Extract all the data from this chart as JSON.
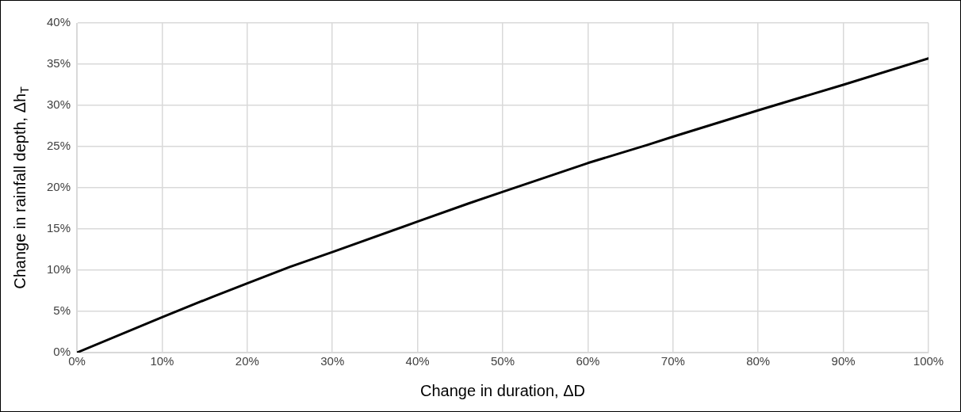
{
  "chart_data": {
    "type": "line",
    "xlabel": "Change in duration, ΔD",
    "ylabel": "Change in rainfall depth, Δh$_{T}$",
    "x": [
      0,
      10,
      16,
      20,
      25,
      30,
      40,
      46,
      50,
      60,
      67,
      70,
      80,
      90,
      100
    ],
    "series": [
      {
        "color": "#000000",
        "values": [
          0,
          4.3,
          6.8,
          8.4,
          10.4,
          12.2,
          15.9,
          18.1,
          19.5,
          23,
          25.2,
          26.2,
          29.4,
          32.5,
          35.7
        ]
      }
    ],
    "xlim": [
      0,
      100
    ],
    "xticks": [
      {
        "value": 0,
        "label": "0%"
      },
      {
        "value": 10,
        "label": "10%"
      },
      {
        "value": 20,
        "label": "20%"
      },
      {
        "value": 30,
        "label": "30%"
      },
      {
        "value": 40,
        "label": "40%"
      },
      {
        "value": 50,
        "label": "50%"
      },
      {
        "value": 60,
        "label": "60%"
      },
      {
        "value": 70,
        "label": "70%"
      },
      {
        "value": 80,
        "label": "80%"
      },
      {
        "value": 90,
        "label": "90%"
      },
      {
        "value": 100,
        "label": "100%"
      }
    ],
    "ylim": [
      0,
      40
    ],
    "yticks": [
      {
        "value": 0,
        "label": "0%"
      },
      {
        "value": 5,
        "label": "5%"
      },
      {
        "value": 10,
        "label": "10%"
      },
      {
        "value": 15,
        "label": "15%"
      },
      {
        "value": 20,
        "label": "20%"
      },
      {
        "value": 25,
        "label": "25%"
      },
      {
        "value": 30,
        "label": "30%"
      },
      {
        "value": 35,
        "label": "35%"
      },
      {
        "value": 40,
        "label": "40%"
      }
    ],
    "grid": true,
    "legend": false,
    "marker": "none",
    "line_style": "solid"
  }
}
